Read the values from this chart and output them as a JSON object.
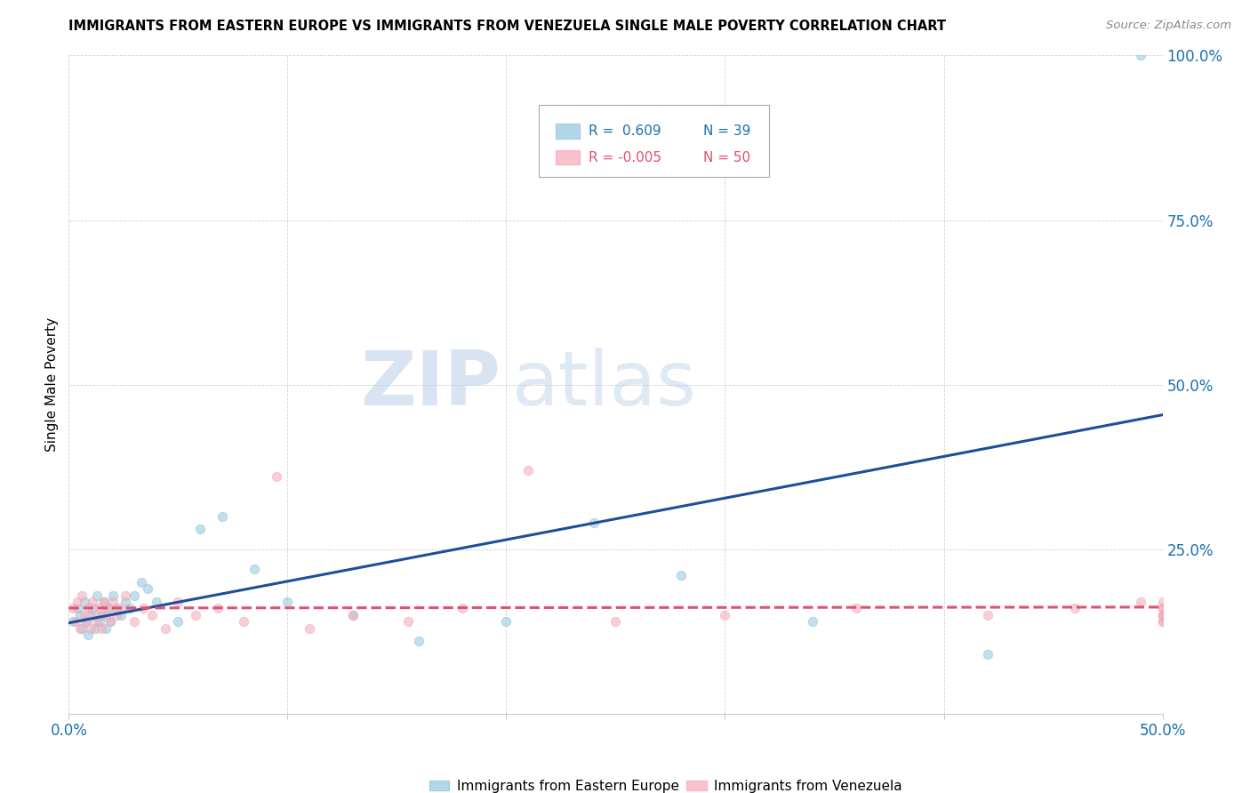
{
  "title": "IMMIGRANTS FROM EASTERN EUROPE VS IMMIGRANTS FROM VENEZUELA SINGLE MALE POVERTY CORRELATION CHART",
  "source": "Source: ZipAtlas.com",
  "ylabel": "Single Male Poverty",
  "xlabel_blue": "Immigrants from Eastern Europe",
  "xlabel_pink": "Immigrants from Venezuela",
  "legend_blue_R": "R =  0.609",
  "legend_blue_N": "N = 39",
  "legend_pink_R": "R = -0.005",
  "legend_pink_N": "N = 50",
  "xlim": [
    0.0,
    0.5
  ],
  "ylim": [
    0.0,
    1.0
  ],
  "xticks": [
    0.0,
    0.1,
    0.2,
    0.3,
    0.4,
    0.5
  ],
  "xticklabels": [
    "0.0%",
    "",
    "",
    "",
    "",
    "50.0%"
  ],
  "yticks": [
    0.0,
    0.25,
    0.5,
    0.75,
    1.0
  ],
  "yticklabels": [
    "",
    "25.0%",
    "50.0%",
    "75.0%",
    "100.0%"
  ],
  "blue_color": "#92c5de",
  "pink_color": "#f4a9b8",
  "line_blue": "#1f4e99",
  "line_pink": "#e05070",
  "watermark_zip": "ZIP",
  "watermark_atlas": "atlas",
  "blue_x": [
    0.002,
    0.004,
    0.005,
    0.006,
    0.007,
    0.008,
    0.009,
    0.01,
    0.011,
    0.012,
    0.013,
    0.014,
    0.015,
    0.016,
    0.017,
    0.018,
    0.019,
    0.02,
    0.022,
    0.024,
    0.026,
    0.028,
    0.03,
    0.033,
    0.036,
    0.04,
    0.05,
    0.06,
    0.07,
    0.085,
    0.1,
    0.13,
    0.16,
    0.2,
    0.24,
    0.28,
    0.34,
    0.42,
    0.49
  ],
  "blue_y": [
    0.14,
    0.16,
    0.15,
    0.13,
    0.17,
    0.14,
    0.12,
    0.15,
    0.16,
    0.13,
    0.18,
    0.14,
    0.15,
    0.17,
    0.13,
    0.16,
    0.14,
    0.18,
    0.16,
    0.15,
    0.17,
    0.16,
    0.18,
    0.2,
    0.19,
    0.17,
    0.14,
    0.28,
    0.3,
    0.22,
    0.17,
    0.15,
    0.11,
    0.14,
    0.29,
    0.21,
    0.14,
    0.09,
    1.0
  ],
  "pink_x": [
    0.002,
    0.003,
    0.004,
    0.005,
    0.006,
    0.007,
    0.008,
    0.009,
    0.01,
    0.011,
    0.012,
    0.013,
    0.014,
    0.015,
    0.016,
    0.017,
    0.018,
    0.019,
    0.02,
    0.022,
    0.024,
    0.026,
    0.03,
    0.034,
    0.038,
    0.044,
    0.05,
    0.058,
    0.068,
    0.08,
    0.095,
    0.11,
    0.13,
    0.155,
    0.18,
    0.21,
    0.25,
    0.3,
    0.36,
    0.42,
    0.46,
    0.49,
    0.5,
    0.5,
    0.5,
    0.5,
    0.5,
    0.5,
    0.5,
    0.5
  ],
  "pink_y": [
    0.16,
    0.14,
    0.17,
    0.13,
    0.18,
    0.15,
    0.14,
    0.16,
    0.13,
    0.17,
    0.15,
    0.14,
    0.16,
    0.13,
    0.17,
    0.15,
    0.16,
    0.14,
    0.17,
    0.15,
    0.16,
    0.18,
    0.14,
    0.16,
    0.15,
    0.13,
    0.17,
    0.15,
    0.16,
    0.14,
    0.36,
    0.13,
    0.15,
    0.14,
    0.16,
    0.37,
    0.14,
    0.15,
    0.16,
    0.15,
    0.16,
    0.17,
    0.15,
    0.14,
    0.16,
    0.15,
    0.17,
    0.14,
    0.15,
    0.16
  ]
}
